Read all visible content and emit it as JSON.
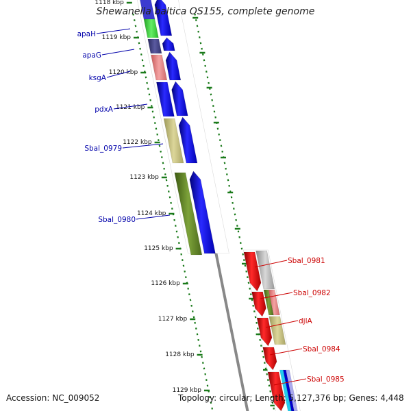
{
  "header": {
    "title": "Shewanella baltica OS155, complete genome"
  },
  "footer": {
    "accession": "Accession: NC_009052",
    "summary": "Topology: circular; Length: 5,127,376 bp; Genes: 4,448"
  },
  "ticks": [
    {
      "label": "1118 kbp"
    },
    {
      "label": "1119 kbp"
    },
    {
      "label": "1120 kbp"
    },
    {
      "label": "1121 kbp"
    },
    {
      "label": "1122 kbp"
    },
    {
      "label": "1123 kbp"
    },
    {
      "label": "1124 kbp"
    },
    {
      "label": "1125 kbp"
    },
    {
      "label": "1126 kbp"
    },
    {
      "label": "1127 kbp"
    },
    {
      "label": "1128 kbp"
    },
    {
      "label": "1129 kbp"
    }
  ],
  "left_genes": [
    {
      "label": "apaH"
    },
    {
      "label": "apaG"
    },
    {
      "label": "ksgA"
    },
    {
      "label": "pdxA"
    },
    {
      "label": "Sbal_0979"
    },
    {
      "label": "Sbal_0980"
    }
  ],
  "right_genes": [
    {
      "label": "Sbal_0981"
    },
    {
      "label": "Sbal_0982"
    },
    {
      "label": "djlA"
    },
    {
      "label": "Sbal_0984"
    },
    {
      "label": "Sbal_0985"
    }
  ],
  "colors": {
    "forward_strand": "#0000ee",
    "reverse_strand": "#ee0000",
    "left_label": "#0000aa",
    "right_label": "#cc0000",
    "backbone": "#888888",
    "tick": "#1a7a1a"
  }
}
